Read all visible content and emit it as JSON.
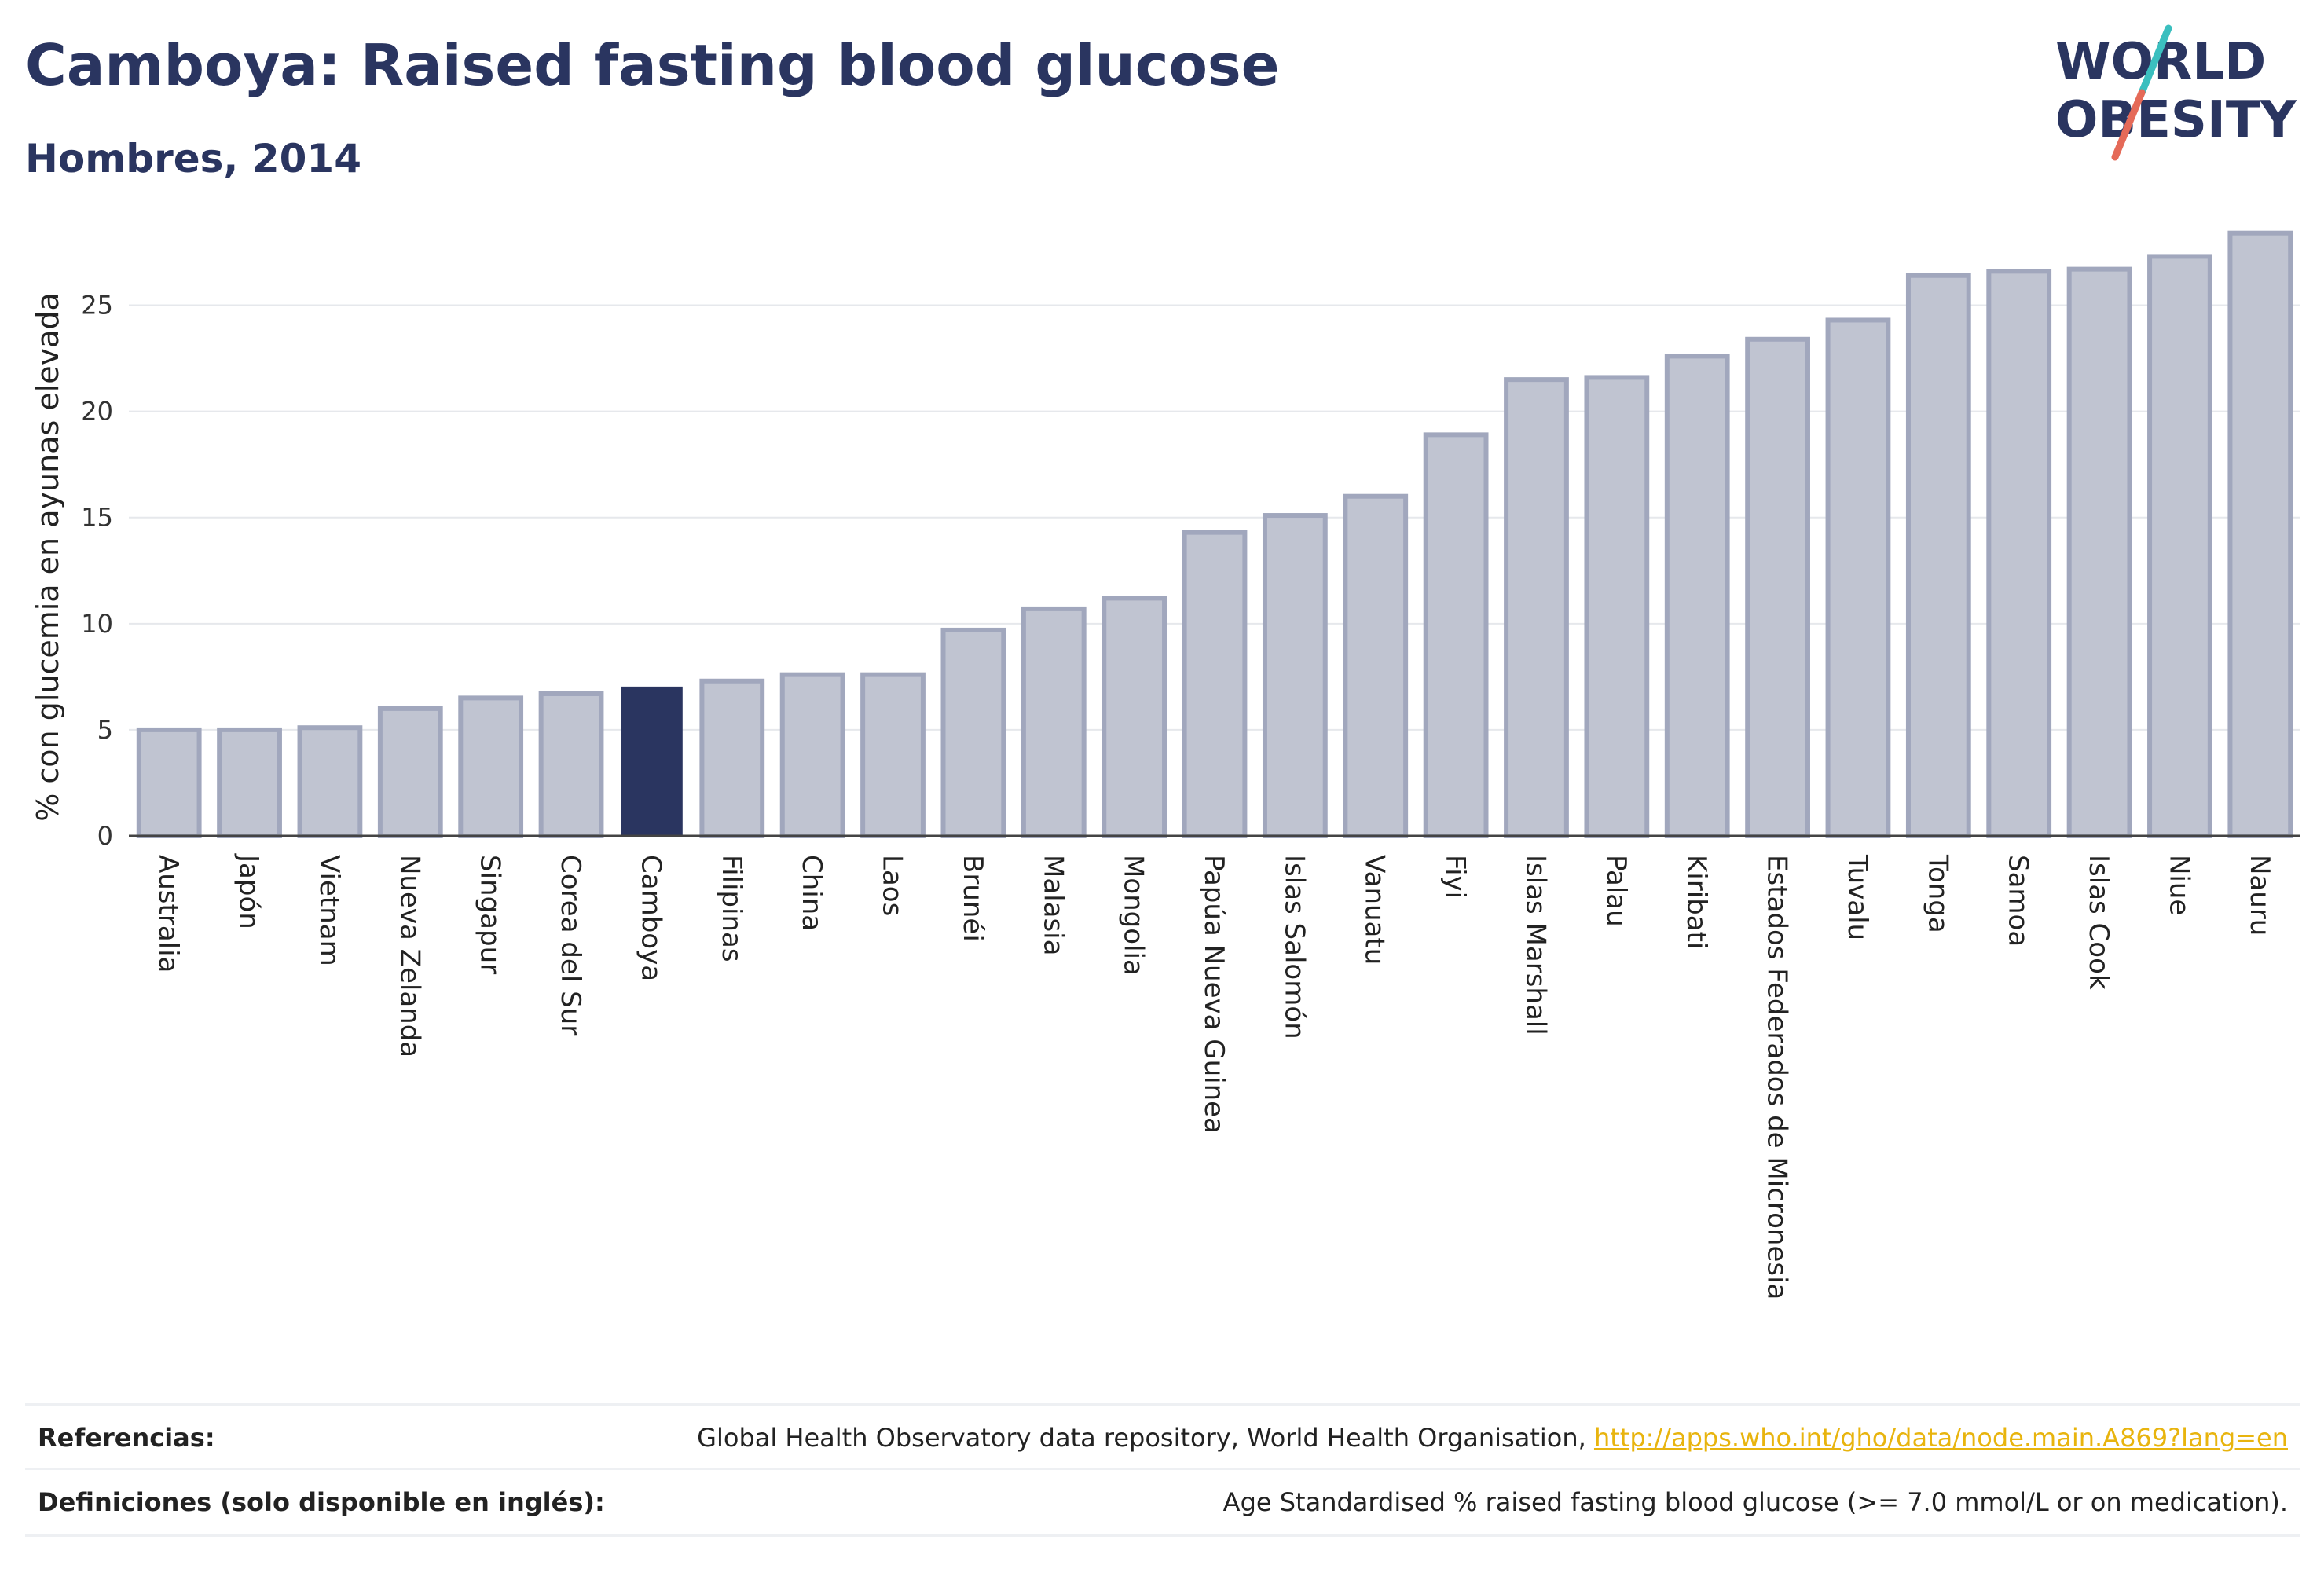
{
  "title": "Camboya: Raised fasting blood glucose",
  "subtitle": "Hombres, 2014",
  "logo": {
    "line1": "WORLD",
    "line2": "OBESITY"
  },
  "colors": {
    "highlight": "#2a3560",
    "bar": "#c0c4d1",
    "bar_stroke": "#a1a7bd",
    "accent_teal": "#3bbfbf",
    "accent_red": "#e56a58",
    "link": "#e8b40e"
  },
  "chart_data": {
    "type": "bar",
    "ylabel": "% con glucemia en ayunas elevada",
    "xlabel": "",
    "ylim": [
      0,
      28.5
    ],
    "yticks": [
      0,
      5,
      10,
      15,
      20,
      25
    ],
    "grid": true,
    "highlight": "Camboya",
    "categories": [
      "Australia",
      "Japón",
      "Vietnam",
      "Nueva Zelanda",
      "Singapur",
      "Corea del Sur",
      "Camboya",
      "Filipinas",
      "China",
      "Laos",
      "Brunéi",
      "Malasia",
      "Mongolia",
      "Papúa Nueva Guinea",
      "Islas Salomón",
      "Vanuatu",
      "Fiyi",
      "Islas Marshall",
      "Palau",
      "Kiribati",
      "Estados Federados de Micronesia",
      "Tuvalu",
      "Tonga",
      "Samoa",
      "Islas Cook",
      "Niue",
      "Nauru"
    ],
    "values": [
      5.0,
      5.0,
      5.1,
      6.0,
      6.5,
      6.7,
      7.0,
      7.3,
      7.6,
      7.6,
      9.7,
      10.7,
      11.2,
      14.3,
      15.1,
      16.0,
      18.9,
      21.5,
      21.6,
      22.6,
      23.4,
      24.3,
      26.4,
      26.6,
      26.7,
      27.3,
      28.4
    ]
  },
  "footer": {
    "references_label": "Referencias:",
    "references_text": "Global Health Observatory data repository, World Health Organisation, ",
    "references_link": "http://apps.who.int/gho/data/node.main.A869?lang=en",
    "definitions_label": "Definiciones (solo disponible en inglés):",
    "definitions_text": "Age Standardised % raised fasting blood glucose (>= 7.0 mmol/L or on medication)."
  }
}
